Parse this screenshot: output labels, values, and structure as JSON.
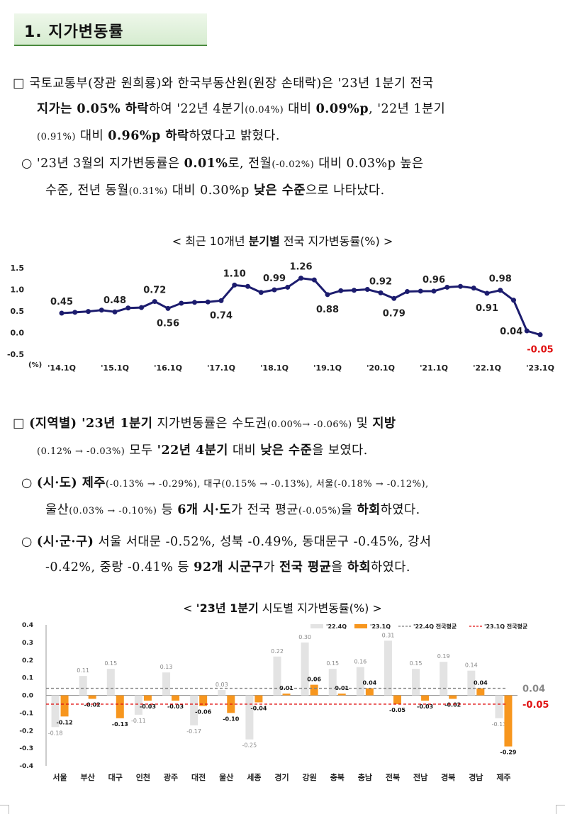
{
  "section_title": "1. 지가변동률",
  "p1": {
    "marker": "□",
    "l1_a": "국토교통부(장관 원희룡)와 한국부동산원(원장 손태락)은 '23년 1분기 전국",
    "l2_a": "지가는 0.05% 하락",
    "l2_b": "하여 '22년 4분기",
    "l2_c": "(0.04%)",
    "l2_d": " 대비 ",
    "l2_e": "0.09%p",
    "l2_f": ", '22년 1분기",
    "l3_a": "(0.91%)",
    "l3_b": " 대비 ",
    "l3_c": "0.96%p 하락",
    "l3_d": "하였다고 밝혔다."
  },
  "p2": {
    "marker": "○",
    "l1_a": "'23년 3월의 지가변동률은 ",
    "l1_b": "0.01%",
    "l1_c": "로, 전월",
    "l1_d": "(-0.02%)",
    "l1_e": " 대비 0.03%p 높은",
    "l2_a": "수준, 전년 동월",
    "l2_b": "(0.31%)",
    "l2_c": " 대비 0.30%p ",
    "l2_d": "낮은 수준",
    "l2_e": "으로 나타났다."
  },
  "chart1_title": {
    "a": "< 최근 10개년 ",
    "b": "분기별",
    "c": " 전국 지가변동률(%) >"
  },
  "chart1": {
    "type": "line",
    "ylabel": "(%)",
    "yticks": [
      "1.5",
      "1.0",
      "0.5",
      "0.0",
      "-0.5"
    ],
    "ylim": [
      -0.5,
      1.5
    ],
    "xtick_labels": [
      "'14.1Q",
      "'15.1Q",
      "'16.1Q",
      "'17.1Q",
      "'18.1Q",
      "'19.1Q",
      "'20.1Q",
      "'21.1Q",
      "'22.1Q",
      "'23.1Q"
    ],
    "values": [
      0.45,
      0.47,
      0.49,
      0.52,
      0.48,
      0.57,
      0.58,
      0.72,
      0.56,
      0.68,
      0.7,
      0.71,
      0.74,
      1.1,
      1.07,
      0.93,
      0.99,
      1.05,
      1.26,
      1.22,
      0.88,
      0.97,
      0.98,
      1.0,
      0.92,
      0.79,
      0.95,
      0.96,
      0.96,
      1.05,
      1.07,
      1.03,
      0.91,
      0.98,
      0.75,
      0.04,
      -0.05
    ],
    "labels": [
      {
        "i": 0,
        "text": "0.45",
        "pos": "above"
      },
      {
        "i": 4,
        "text": "0.48",
        "pos": "above"
      },
      {
        "i": 7,
        "text": "0.72",
        "pos": "above"
      },
      {
        "i": 8,
        "text": "0.56",
        "pos": "below"
      },
      {
        "i": 12,
        "text": "0.74",
        "pos": "below"
      },
      {
        "i": 13,
        "text": "1.10",
        "pos": "above"
      },
      {
        "i": 16,
        "text": "0.99",
        "pos": "above"
      },
      {
        "i": 18,
        "text": "1.26",
        "pos": "above"
      },
      {
        "i": 20,
        "text": "0.88",
        "pos": "below"
      },
      {
        "i": 24,
        "text": "0.92",
        "pos": "above"
      },
      {
        "i": 25,
        "text": "0.79",
        "pos": "below"
      },
      {
        "i": 28,
        "text": "0.96",
        "pos": "above"
      },
      {
        "i": 32,
        "text": "0.91",
        "pos": "below"
      },
      {
        "i": 33,
        "text": "0.98",
        "pos": "above"
      },
      {
        "i": 35,
        "text": "0.04",
        "pos": "leftbelow"
      },
      {
        "i": 36,
        "text": "-0.05",
        "pos": "below",
        "color": "#e01010"
      }
    ]
  },
  "p3": {
    "marker": "□",
    "l1_a": "(지역별)",
    "l1_b": " '23년 1분기",
    "l1_c": " 지가변동률은 수도권",
    "l1_d": "(0.00%→ -0.06%)",
    "l1_e": " 및 ",
    "l1_f": "지방",
    "l2_a": "(0.12% → -0.03%)",
    "l2_b": " 모두 ",
    "l2_c": "'22년 4분기",
    "l2_d": " 대비 ",
    "l2_e": "낮은 수준",
    "l2_f": "을 보였다."
  },
  "p4": {
    "marker": "○",
    "l1_a": "(시·도)",
    "l1_b": " 제주",
    "l1_c": "(-0.13% → -0.29%), 대구(0.15% → -0.13%), 서울(-0.18% → -0.12%),",
    "l2_a": "울산",
    "l2_b": "(0.03% → -0.10%)",
    "l2_c": " 등 ",
    "l2_d": "6개 시·도",
    "l2_e": "가 전국 평균",
    "l2_f": "(-0.05%)",
    "l2_g": "을 ",
    "l2_h": "하회",
    "l2_i": "하였다."
  },
  "p5": {
    "marker": "○",
    "l1_a": "(시·군·구)",
    "l1_b": " 서울 서대문 -0.52%, 성북 -0.49%, 동대문구 -0.45%, 강서",
    "l2_a": "-0.42%, 중랑 -0.41% 등 ",
    "l2_b": "92개 시군구",
    "l2_c": "가 ",
    "l2_d": "전국 평균",
    "l2_e": "을 ",
    "l2_f": "하회",
    "l2_g": "하였다."
  },
  "chart2_title": {
    "a": "< ",
    "b": "'23년 1분기",
    "c": " 시도별 지가변동률(%) >"
  },
  "chart2": {
    "type": "bar",
    "categories": [
      "서울",
      "부산",
      "대구",
      "인천",
      "광주",
      "대전",
      "울산",
      "세종",
      "경기",
      "강원",
      "충북",
      "충남",
      "전북",
      "전남",
      "경북",
      "경남",
      "제주"
    ],
    "yticks": [
      "0.4",
      "0.3",
      "0.2",
      "0.1",
      "0.0",
      "-0.1",
      "-0.2",
      "-0.3",
      "-0.4"
    ],
    "ylim": [
      -0.4,
      0.4
    ],
    "series": [
      {
        "name": "'22.4Q",
        "color": "#e3e3e3",
        "values": [
          -0.18,
          0.11,
          0.15,
          -0.11,
          0.13,
          -0.17,
          0.03,
          -0.25,
          0.22,
          0.3,
          0.15,
          0.16,
          0.31,
          0.15,
          0.19,
          0.14,
          -0.13
        ],
        "labels": [
          "-0.18",
          "0.11",
          "0.15",
          "-0.11",
          "0.13",
          "-0.17",
          "0.03",
          "-0.25",
          "0.22",
          "0.30",
          "0.15",
          "0.16",
          "0.31",
          "0.15",
          "0.19",
          "0.14",
          "-0.13"
        ]
      },
      {
        "name": "'23.1Q",
        "color": "#f7961e",
        "values": [
          -0.12,
          -0.02,
          -0.13,
          -0.03,
          -0.03,
          -0.06,
          -0.1,
          -0.04,
          0.01,
          0.06,
          0.01,
          0.04,
          -0.05,
          -0.03,
          -0.02,
          0.04,
          -0.29
        ],
        "labels": [
          "-0.12",
          "-0.02",
          "-0.13",
          "-0.03",
          "-0.03",
          "-0.06",
          "-0.10",
          "-0.04",
          "0.01",
          "0.06",
          "0.01",
          "0.04",
          "-0.05",
          "-0.03",
          "-0.02",
          "0.04",
          "-0.29"
        ]
      }
    ],
    "avg_lines": [
      {
        "name": "'22.4Q 전국평균",
        "value": 0.04,
        "label": "0.04",
        "color": "#7f7f7f"
      },
      {
        "name": "'23.1Q 전국평균",
        "value": -0.05,
        "label": "-0.05",
        "color": "#e01010"
      }
    ]
  }
}
